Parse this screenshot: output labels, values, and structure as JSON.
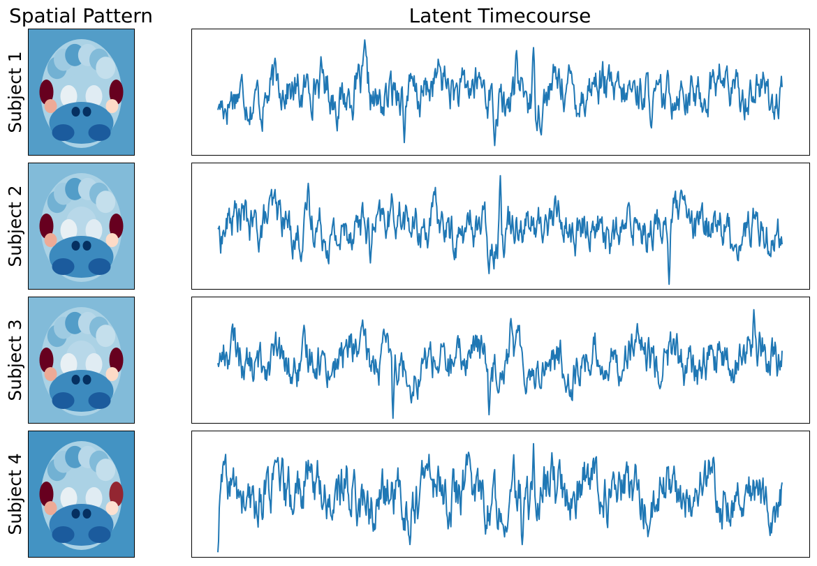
{
  "figure": {
    "left_title": "Spatial Pattern",
    "right_title": "Latent Timecourse"
  },
  "colors": {
    "line": "#1f77b4",
    "axes_border": "#000000",
    "colormap": "RdBu_r"
  },
  "chart_data": [
    {
      "type": "line",
      "title": "Latent Timecourse",
      "subject_label": "Subject 1",
      "n_points": 800,
      "axis_ticks": false,
      "grid": false,
      "ylim": [
        -1.0,
        1.0
      ],
      "series": [
        {
          "color": "#1f77b4",
          "features": [
            {
              "x": 0.0,
              "y": -0.3
            },
            {
              "x": 0.07,
              "y": 0.2
            },
            {
              "x": 0.26,
              "y": 0.88
            },
            {
              "x": 0.33,
              "y": -0.85
            },
            {
              "x": 0.49,
              "y": -0.9
            },
            {
              "x": 0.51,
              "y": -0.4
            },
            {
              "x": 0.53,
              "y": 0.7
            },
            {
              "x": 0.56,
              "y": 0.75
            }
          ]
        }
      ],
      "spatial_pattern": {
        "background": 0.45,
        "left_lateral": 1.0,
        "right_lateral": 1.0,
        "center": 0.15,
        "lower": -0.55
      }
    },
    {
      "type": "line",
      "title": "Latent Timecourse",
      "subject_label": "Subject 2",
      "n_points": 800,
      "axis_ticks": false,
      "grid": false,
      "ylim": [
        -1.0,
        1.0
      ],
      "series": [
        {
          "color": "#1f77b4",
          "features": [
            {
              "x": 0.0,
              "y": -0.05
            },
            {
              "x": 0.16,
              "y": 0.72
            },
            {
              "x": 0.27,
              "y": -0.62
            },
            {
              "x": 0.48,
              "y": -0.8
            },
            {
              "x": 0.5,
              "y": 0.85
            },
            {
              "x": 0.8,
              "y": -0.98
            }
          ]
        }
      ],
      "spatial_pattern": {
        "background": 0.3,
        "left_lateral": 1.0,
        "right_lateral": 1.0,
        "center": 0.1,
        "lower": -0.55
      }
    },
    {
      "type": "line",
      "title": "Latent Timecourse",
      "subject_label": "Subject 3",
      "n_points": 800,
      "axis_ticks": false,
      "grid": false,
      "ylim": [
        -1.0,
        1.0
      ],
      "series": [
        {
          "color": "#1f77b4",
          "features": [
            {
              "x": 0.0,
              "y": -0.05
            },
            {
              "x": 0.31,
              "y": -0.98
            },
            {
              "x": 0.48,
              "y": -0.92
            },
            {
              "x": 0.52,
              "y": 0.7
            },
            {
              "x": 0.95,
              "y": 0.85
            }
          ]
        }
      ],
      "spatial_pattern": {
        "background": 0.3,
        "left_lateral": 1.0,
        "right_lateral": 1.0,
        "center": 0.1,
        "lower": -0.55
      }
    },
    {
      "type": "line",
      "title": "Latent Timecourse",
      "subject_label": "Subject 4",
      "n_points": 800,
      "axis_ticks": false,
      "grid": false,
      "ylim": [
        -1.0,
        1.0
      ],
      "series": [
        {
          "color": "#1f77b4",
          "features": [
            {
              "x": 0.0,
              "y": -0.98
            },
            {
              "x": 0.01,
              "y": 0.55
            },
            {
              "x": 0.34,
              "y": -0.85
            },
            {
              "x": 0.54,
              "y": -0.85
            },
            {
              "x": 0.56,
              "y": 0.85
            }
          ]
        }
      ],
      "spatial_pattern": {
        "background": 0.5,
        "left_lateral": 1.0,
        "right_lateral": 0.9,
        "center": 0.15,
        "lower": -0.6
      }
    }
  ]
}
